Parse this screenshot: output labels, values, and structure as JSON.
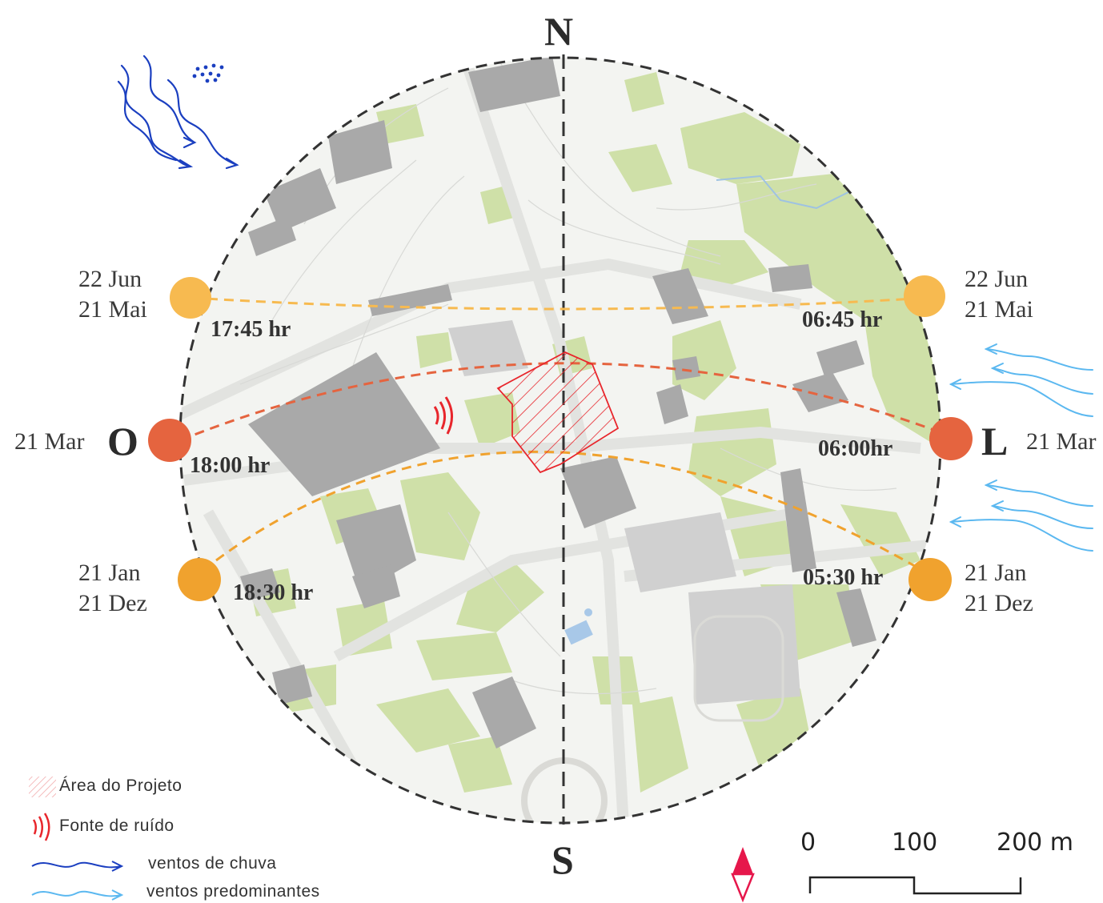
{
  "compass": {
    "north": "N",
    "south": "S",
    "west": "O",
    "east": "L"
  },
  "sun_positions": {
    "west_top": {
      "line1": "22 Jun",
      "line2": "21 Mai",
      "time": "17:45 hr"
    },
    "east_top": {
      "line1": "22 Jun",
      "line2": "21 Mai",
      "time": "06:45 hr"
    },
    "west_mid": {
      "date": "21 Mar",
      "time": "18:00 hr"
    },
    "east_mid": {
      "date": "21 Mar",
      "time": "06:00hr"
    },
    "west_bottom": {
      "line1": "21 Jan",
      "line2": "21 Dez",
      "time": "18:30 hr"
    },
    "east_bottom": {
      "line1": "21 Jan",
      "line2": "21 Dez",
      "time": "05:30 hr"
    }
  },
  "legend": {
    "project_area": "Área do Projeto",
    "noise_source": "Fonte de ruído",
    "rain_winds": "ventos de chuva",
    "prevailing_winds": "ventos predominantes"
  },
  "scale_bar": {
    "tick0": "0",
    "tick1": "100",
    "tick2": "200 m"
  },
  "colors": {
    "sun_light": "#F7BA50",
    "sun_equinox": "#E5643F",
    "sun_dark": "#F0A22E",
    "rain_wind": "#1B3FC0",
    "prevailing_wind": "#5BB8F0",
    "noise": "#E8262C",
    "vegetation": "#CFE0A8",
    "building": "#A9A9A9",
    "north_arrow": "#E6174B"
  }
}
